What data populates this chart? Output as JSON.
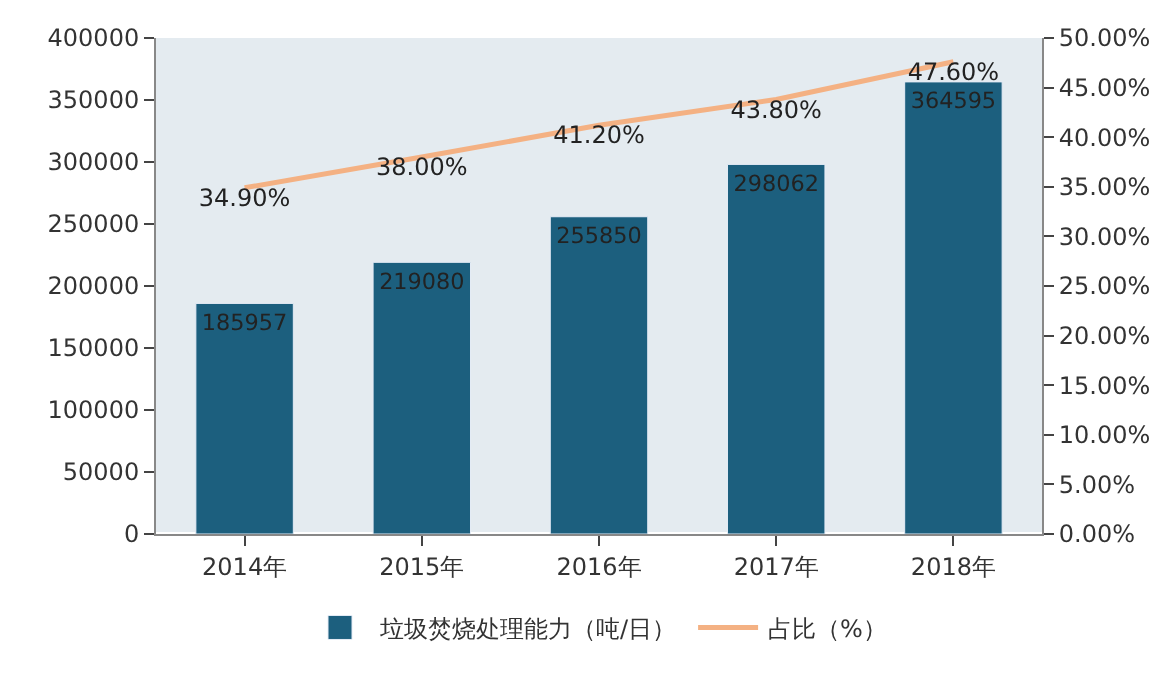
{
  "chart_data": {
    "type": "bar",
    "categories": [
      "2014年",
      "2015年",
      "2016年",
      "2017年",
      "2018年"
    ],
    "series": [
      {
        "name": "垃圾焚烧处理能力（吨/日）",
        "color": "#1c5f7e",
        "values": [
          185957,
          219080,
          255850,
          298062,
          364595
        ],
        "value_labels": [
          "185957",
          "219080",
          "255850",
          "298062",
          "364595"
        ]
      },
      {
        "name": "占比（%）",
        "type": "line",
        "axis": "y2",
        "color": "#f4b183",
        "values": [
          34.9,
          38.0,
          41.2,
          43.8,
          47.6
        ],
        "value_labels": [
          "34.90%",
          "38.00%",
          "41.20%",
          "43.80%",
          "47.60%"
        ]
      }
    ],
    "ylim": [
      0,
      400000
    ],
    "yticks": [
      0,
      50000,
      100000,
      150000,
      200000,
      250000,
      300000,
      350000,
      400000
    ],
    "y2lim": [
      0,
      50
    ],
    "y2ticks": [
      {
        "value": 0,
        "label": "0.00%"
      },
      {
        "value": 5,
        "label": "5.00%"
      },
      {
        "value": 10,
        "label": "10.00%"
      },
      {
        "value": 15,
        "label": "15.00%"
      },
      {
        "value": 20,
        "label": "20.00%"
      },
      {
        "value": 25,
        "label": "25.00%"
      },
      {
        "value": 30,
        "label": "30.00%"
      },
      {
        "value": 35,
        "label": "35.00%"
      },
      {
        "value": 40,
        "label": "40.00%"
      },
      {
        "value": 45,
        "label": "45.00%"
      },
      {
        "value": 50,
        "label": "50.00%"
      }
    ],
    "legend": "bottom",
    "marker": "none",
    "line_style": "solid",
    "grid": false
  }
}
